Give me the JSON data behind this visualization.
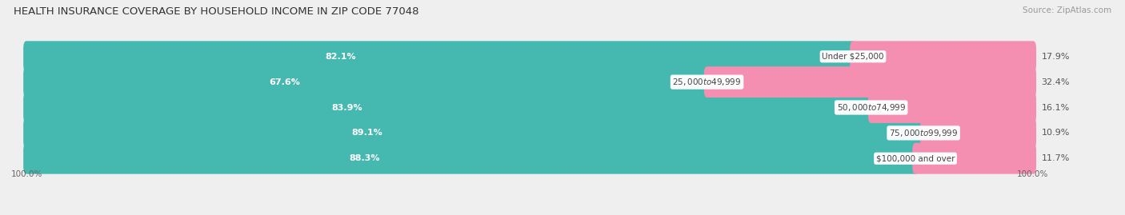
{
  "title": "HEALTH INSURANCE COVERAGE BY HOUSEHOLD INCOME IN ZIP CODE 77048",
  "source": "Source: ZipAtlas.com",
  "categories": [
    "Under $25,000",
    "$25,000 to $49,999",
    "$50,000 to $74,999",
    "$75,000 to $99,999",
    "$100,000 and over"
  ],
  "with_coverage": [
    82.1,
    67.6,
    83.9,
    89.1,
    88.3
  ],
  "without_coverage": [
    17.9,
    32.4,
    16.1,
    10.9,
    11.7
  ],
  "color_coverage": "#45b8b0",
  "color_no_coverage": "#f48fb1",
  "bar_height": 0.62,
  "background_color": "#efefef",
  "title_fontsize": 9.5,
  "label_fontsize": 8.0,
  "tick_fontsize": 7.5,
  "legend_fontsize": 8.0,
  "source_fontsize": 7.5
}
